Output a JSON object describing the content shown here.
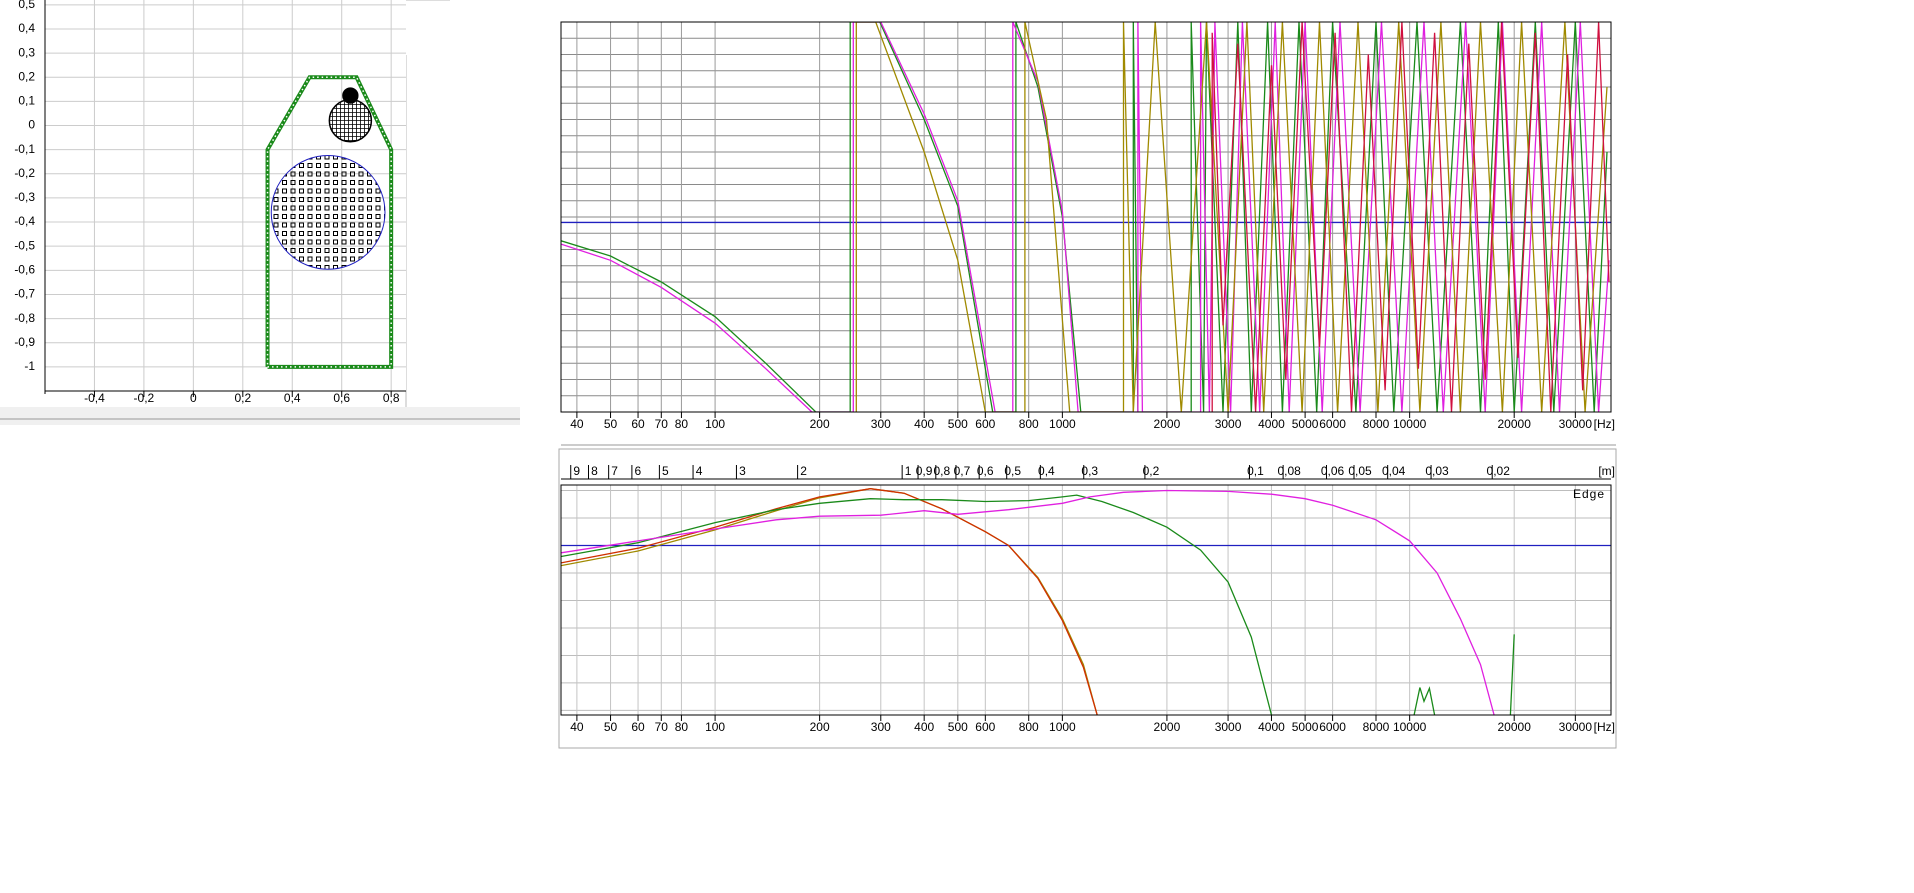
{
  "chart_data": [
    {
      "type": "outline",
      "xlim": [
        -0.6,
        0.86
      ],
      "ylim": [
        -1.1,
        0.52
      ],
      "xticks": [
        {
          "value": -0.4,
          "label": "-0,4"
        },
        {
          "value": -0.2,
          "label": "-0,2"
        },
        0,
        {
          "value": 0.2,
          "label": "0,2"
        },
        {
          "value": 0.4,
          "label": "0,4"
        },
        {
          "value": 0.6,
          "label": "0,6"
        },
        {
          "value": 0.8,
          "label": "0,8"
        }
      ],
      "yticks": [
        {
          "value": 0.5,
          "label": "0,5"
        },
        {
          "value": 0.4,
          "label": "0,4"
        },
        {
          "value": 0.3,
          "label": "0,3"
        },
        {
          "value": 0.2,
          "label": "0,2"
        },
        {
          "value": 0.1,
          "label": "0,1"
        },
        0,
        {
          "value": -0.1,
          "label": "-0,1"
        },
        {
          "value": -0.2,
          "label": "-0,2"
        },
        {
          "value": -0.3,
          "label": "-0,3"
        },
        {
          "value": -0.4,
          "label": "-0,4"
        },
        {
          "value": -0.5,
          "label": "-0,5"
        },
        {
          "value": -0.6,
          "label": "-0,6"
        },
        {
          "value": -0.7,
          "label": "-0,7"
        },
        {
          "value": -0.8,
          "label": "-0,8"
        },
        {
          "value": -0.9,
          "label": "-0,9"
        },
        -1
      ],
      "grid": true,
      "outline": {
        "color": "#1a8a1a",
        "x": [
          0.3,
          0.8,
          0.8,
          0.66,
          0.47,
          0.3,
          0.3
        ],
        "y": [
          -1,
          -1,
          -0.1,
          0.2,
          0.2,
          -0.1,
          -1
        ]
      },
      "drivers": [
        {
          "color": "#2020c0",
          "x": 0.545,
          "y": -0.36,
          "r": 0.23
        },
        {
          "color": "#000000",
          "x": 0.635,
          "y": 0.02,
          "r": 0.085
        },
        {
          "color": "#000000",
          "x": 0.635,
          "y": 0.124,
          "r": 0.03
        }
      ]
    },
    {
      "type": "line",
      "xscale": "log",
      "xlim": [
        36,
        38000
      ],
      "ylim": [
        -180,
        180
      ],
      "xticks": [
        40,
        50,
        60,
        70,
        80,
        100,
        200,
        300,
        400,
        500,
        600,
        800,
        1000,
        2000,
        3000,
        4000,
        5000,
        6000,
        8000,
        10000,
        20000,
        30000
      ],
      "xunit": "[Hz]",
      "yticks": [
        -180,
        -165,
        -150,
        -135,
        -120,
        -105,
        -90,
        -75,
        -60,
        -45,
        -30,
        -15,
        0,
        15,
        30,
        45,
        60,
        75,
        90,
        105,
        120,
        135,
        150,
        165,
        180
      ],
      "ytick_labels": false,
      "grid": true,
      "hline": {
        "value": -5,
        "color": "#2020c0"
      },
      "series": [
        {
          "color": "#1a8a1a",
          "x": [
            36,
            50,
            70,
            100,
            140,
            195,
            245,
            245,
            298,
            400,
            500,
            630,
            735,
            735,
            850,
            1000,
            1130,
            1600,
            1600,
            1650,
            2350,
            2350,
            2550,
            2600,
            2900,
            3200,
            3500,
            3900,
            4300,
            4800,
            5400,
            6000,
            7000,
            8000,
            9000,
            10500,
            12000,
            14000,
            16000,
            18000,
            20000,
            23000,
            26000,
            30000,
            34000,
            37000
          ],
          "values": [
            -22,
            -36,
            -60,
            -92,
            -135,
            -180,
            -180,
            180,
            180,
            90,
            10,
            -180,
            -180,
            180,
            120,
            0,
            -180,
            -180,
            180,
            -180,
            -180,
            180,
            -180,
            180,
            -180,
            180,
            -180,
            180,
            -180,
            180,
            -180,
            180,
            -180,
            180,
            -180,
            180,
            -180,
            180,
            -180,
            180,
            -180,
            180,
            -180,
            180,
            -180,
            60
          ]
        },
        {
          "color": "#e020e0",
          "x": [
            36,
            50,
            70,
            100,
            140,
            190,
            250,
            250,
            300,
            400,
            500,
            640,
            720,
            720,
            850,
            1000,
            1110,
            1650,
            1650,
            1700,
            2500,
            2500,
            2650,
            2750,
            3050,
            3300,
            3700,
            4100,
            4500,
            5000,
            5600,
            6300,
            7200,
            8300,
            9500,
            11000,
            12500,
            14500,
            16500,
            18500,
            21000,
            24000,
            27000,
            31000,
            35000,
            37500
          ],
          "values": [
            -25,
            -40,
            -65,
            -98,
            -140,
            -180,
            -180,
            180,
            180,
            95,
            15,
            -180,
            -180,
            180,
            125,
            5,
            -180,
            -180,
            180,
            -180,
            -180,
            180,
            -180,
            180,
            -180,
            180,
            -180,
            180,
            -180,
            180,
            -180,
            180,
            -180,
            180,
            -180,
            180,
            -180,
            180,
            -180,
            180,
            -180,
            180,
            -180,
            180,
            -180,
            -40
          ]
        },
        {
          "color": "#a08a00",
          "x": [
            255,
            255,
            290,
            400,
            500,
            600,
            780,
            780,
            900,
            1050,
            1500,
            1500,
            1600,
            1850,
            2200,
            2600,
            3000,
            3400,
            3800,
            4300,
            4900,
            5500,
            6200,
            7100,
            8100,
            9300,
            10700,
            12300,
            14000,
            16000,
            18500,
            21000,
            24000,
            28000,
            32000,
            37000
          ],
          "values": [
            -180,
            180,
            180,
            60,
            -40,
            -180,
            -180,
            180,
            90,
            -180,
            -180,
            180,
            -180,
            180,
            -180,
            180,
            -180,
            180,
            -180,
            180,
            -180,
            180,
            -180,
            180,
            -180,
            180,
            -180,
            180,
            -180,
            180,
            -180,
            180,
            -180,
            180,
            -180,
            120
          ]
        },
        {
          "color": "#d01040",
          "x": [
            2700,
            2700,
            2900,
            3200,
            3600,
            4000,
            4400,
            4900,
            5500,
            6100,
            6800,
            7600,
            8500,
            9500,
            10600,
            11800,
            13200,
            14800,
            16500,
            18400,
            20500,
            23000,
            25500,
            28500,
            31500,
            35000,
            37500
          ],
          "values": [
            -180,
            170,
            -100,
            160,
            -180,
            140,
            -150,
            180,
            -120,
            170,
            -180,
            150,
            -160,
            180,
            -140,
            170,
            -180,
            160,
            -150,
            180,
            -130,
            170,
            -180,
            150,
            -160,
            180,
            -60
          ]
        }
      ]
    },
    {
      "type": "line",
      "xscale": "log",
      "xlim": [
        36,
        38000
      ],
      "ylim": [
        -18.5,
        6.6
      ],
      "xticks": [
        40,
        50,
        60,
        70,
        80,
        100,
        200,
        300,
        400,
        500,
        600,
        800,
        1000,
        2000,
        3000,
        4000,
        5000,
        6000,
        8000,
        10000,
        20000,
        30000
      ],
      "xunit": "[Hz]",
      "x2lim": [
        9.6,
        0.0091
      ],
      "x2ticks": [
        9,
        8,
        7,
        6,
        5,
        4,
        3,
        2,
        1,
        {
          "value": 0.9,
          "label": "0,9"
        },
        {
          "value": 0.8,
          "label": "0,8"
        },
        {
          "value": 0.7,
          "label": "0,7"
        },
        {
          "value": 0.6,
          "label": "0,6"
        },
        {
          "value": 0.5,
          "label": "0,5"
        },
        {
          "value": 0.4,
          "label": "0,4"
        },
        {
          "value": 0.3,
          "label": "0,3"
        },
        {
          "value": 0.2,
          "label": "0,2"
        },
        {
          "value": 0.1,
          "label": "0,1"
        },
        {
          "value": 0.08,
          "label": "0,08"
        },
        {
          "value": 0.06,
          "label": "0,06"
        },
        {
          "value": 0.05,
          "label": "0,05"
        },
        {
          "value": 0.04,
          "label": "0,04"
        },
        {
          "value": 0.03,
          "label": "0,03"
        },
        {
          "value": 0.02,
          "label": "0,02"
        }
      ],
      "x2unit": "[m]",
      "watermark": "Edge",
      "yticks": [
        -18,
        -15,
        -12,
        -9,
        -6,
        -3,
        0,
        3,
        6
      ],
      "ytick_labels": false,
      "grid": true,
      "hline": {
        "value": 0,
        "color": "#2020c0"
      },
      "series": [
        {
          "color": "#a08a00",
          "x": [
            36,
            60,
            100,
            150,
            200,
            280,
            350,
            450,
            600,
            700,
            850,
            1000,
            1150,
            1260
          ],
          "values": [
            -2.2,
            -0.6,
            1.7,
            3.8,
            5.2,
            6.2,
            5.7,
            4.0,
            1.5,
            0,
            -3.5,
            -8,
            -13,
            -18.5
          ]
        },
        {
          "color": "#d03000",
          "x": [
            36,
            60,
            100,
            150,
            200,
            280,
            350,
            450,
            600,
            700,
            850,
            1000,
            1150,
            1260
          ],
          "values": [
            -1.9,
            -0.3,
            2.0,
            4.0,
            5.3,
            6.2,
            5.7,
            4.0,
            1.5,
            0,
            -3.6,
            -8.2,
            -13.3,
            -18.5
          ]
        },
        {
          "color": "#1a8a1a",
          "x": [
            36,
            60,
            100,
            150,
            200,
            280,
            350,
            450,
            600,
            800,
            1000,
            1100,
            1300,
            1600,
            2000,
            2500,
            3000,
            3500,
            4000,
            7000,
            10300,
            10700,
            11000,
            11400,
            11800,
            15000,
            19500,
            20000
          ],
          "values": [
            -1.2,
            0.3,
            2.5,
            3.9,
            4.6,
            5.1,
            5.0,
            5.0,
            4.8,
            4.9,
            5.3,
            5.5,
            4.8,
            3.6,
            2.0,
            -0.5,
            -4,
            -10,
            -18.5,
            null,
            -18.5,
            -15.5,
            -17,
            -15.6,
            -18.5,
            null,
            -18.5,
            -9.7
          ]
        },
        {
          "color": "#e020e0",
          "x": [
            36,
            60,
            100,
            150,
            200,
            300,
            400,
            500,
            700,
            1000,
            1200,
            1500,
            2000,
            3000,
            4000,
            5000,
            6000,
            8000,
            10000,
            12000,
            14000,
            16000,
            17500
          ],
          "values": [
            -0.8,
            0.5,
            1.8,
            2.8,
            3.2,
            3.3,
            3.8,
            3.4,
            3.9,
            4.6,
            5.3,
            5.8,
            6.0,
            5.9,
            5.6,
            5.1,
            4.4,
            2.8,
            0.5,
            -3,
            -8,
            -13,
            -18.5
          ]
        }
      ]
    }
  ]
}
